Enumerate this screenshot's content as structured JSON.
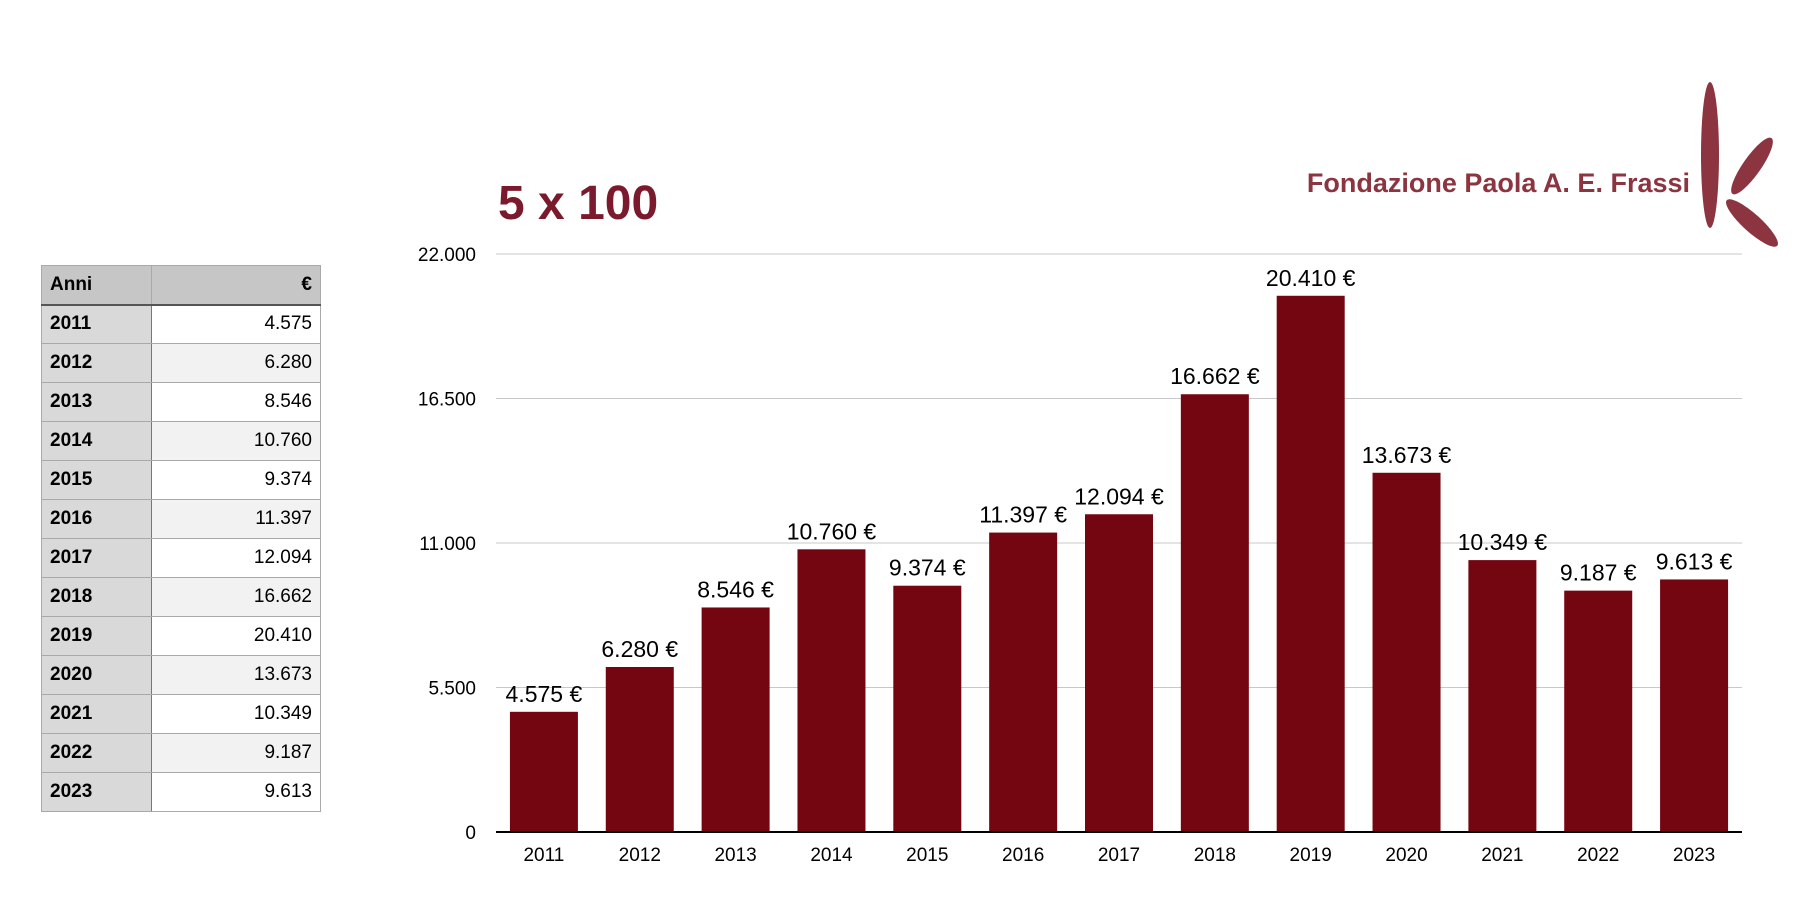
{
  "brand": {
    "org_name": "Fondazione Paola A. E. Frassi",
    "accent_color": "#8c3540",
    "bar_color": "#740612"
  },
  "table": {
    "header_year": "Anni",
    "header_value": "€",
    "rows": [
      {
        "year": "2011",
        "value": "4.575"
      },
      {
        "year": "2012",
        "value": "6.280"
      },
      {
        "year": "2013",
        "value": "8.546"
      },
      {
        "year": "2014",
        "value": "10.760"
      },
      {
        "year": "2015",
        "value": "9.374"
      },
      {
        "year": "2016",
        "value": "11.397"
      },
      {
        "year": "2017",
        "value": "12.094"
      },
      {
        "year": "2018",
        "value": "16.662"
      },
      {
        "year": "2019",
        "value": "20.410"
      },
      {
        "year": "2020",
        "value": "13.673"
      },
      {
        "year": "2021",
        "value": "10.349"
      },
      {
        "year": "2022",
        "value": "9.187"
      },
      {
        "year": "2023",
        "value": "9.613"
      }
    ]
  },
  "chart_data": {
    "type": "bar",
    "title": "5 x 100",
    "xlabel": "",
    "ylabel": "",
    "categories": [
      "2011",
      "2012",
      "2013",
      "2014",
      "2015",
      "2016",
      "2017",
      "2018",
      "2019",
      "2020",
      "2021",
      "2022",
      "2023"
    ],
    "values": [
      4575,
      6280,
      8546,
      10760,
      9374,
      11397,
      12094,
      16662,
      20410,
      13673,
      10349,
      9187,
      9613
    ],
    "data_labels": [
      "4.575 €",
      "6.280 €",
      "8.546 €",
      "10.760 €",
      "9.374 €",
      "11.397 €",
      "12.094 €",
      "16.662 €",
      "20.410 €",
      "13.673 €",
      "10.349 €",
      "9.187 €",
      "9.613 €"
    ],
    "ylim": [
      0,
      22000
    ],
    "yticks": [
      0,
      5500,
      11000,
      16500,
      22000
    ],
    "ytick_labels": [
      "0",
      "5.500",
      "11.000",
      "16.500",
      "22.000"
    ],
    "grid": true,
    "legend": "none"
  }
}
